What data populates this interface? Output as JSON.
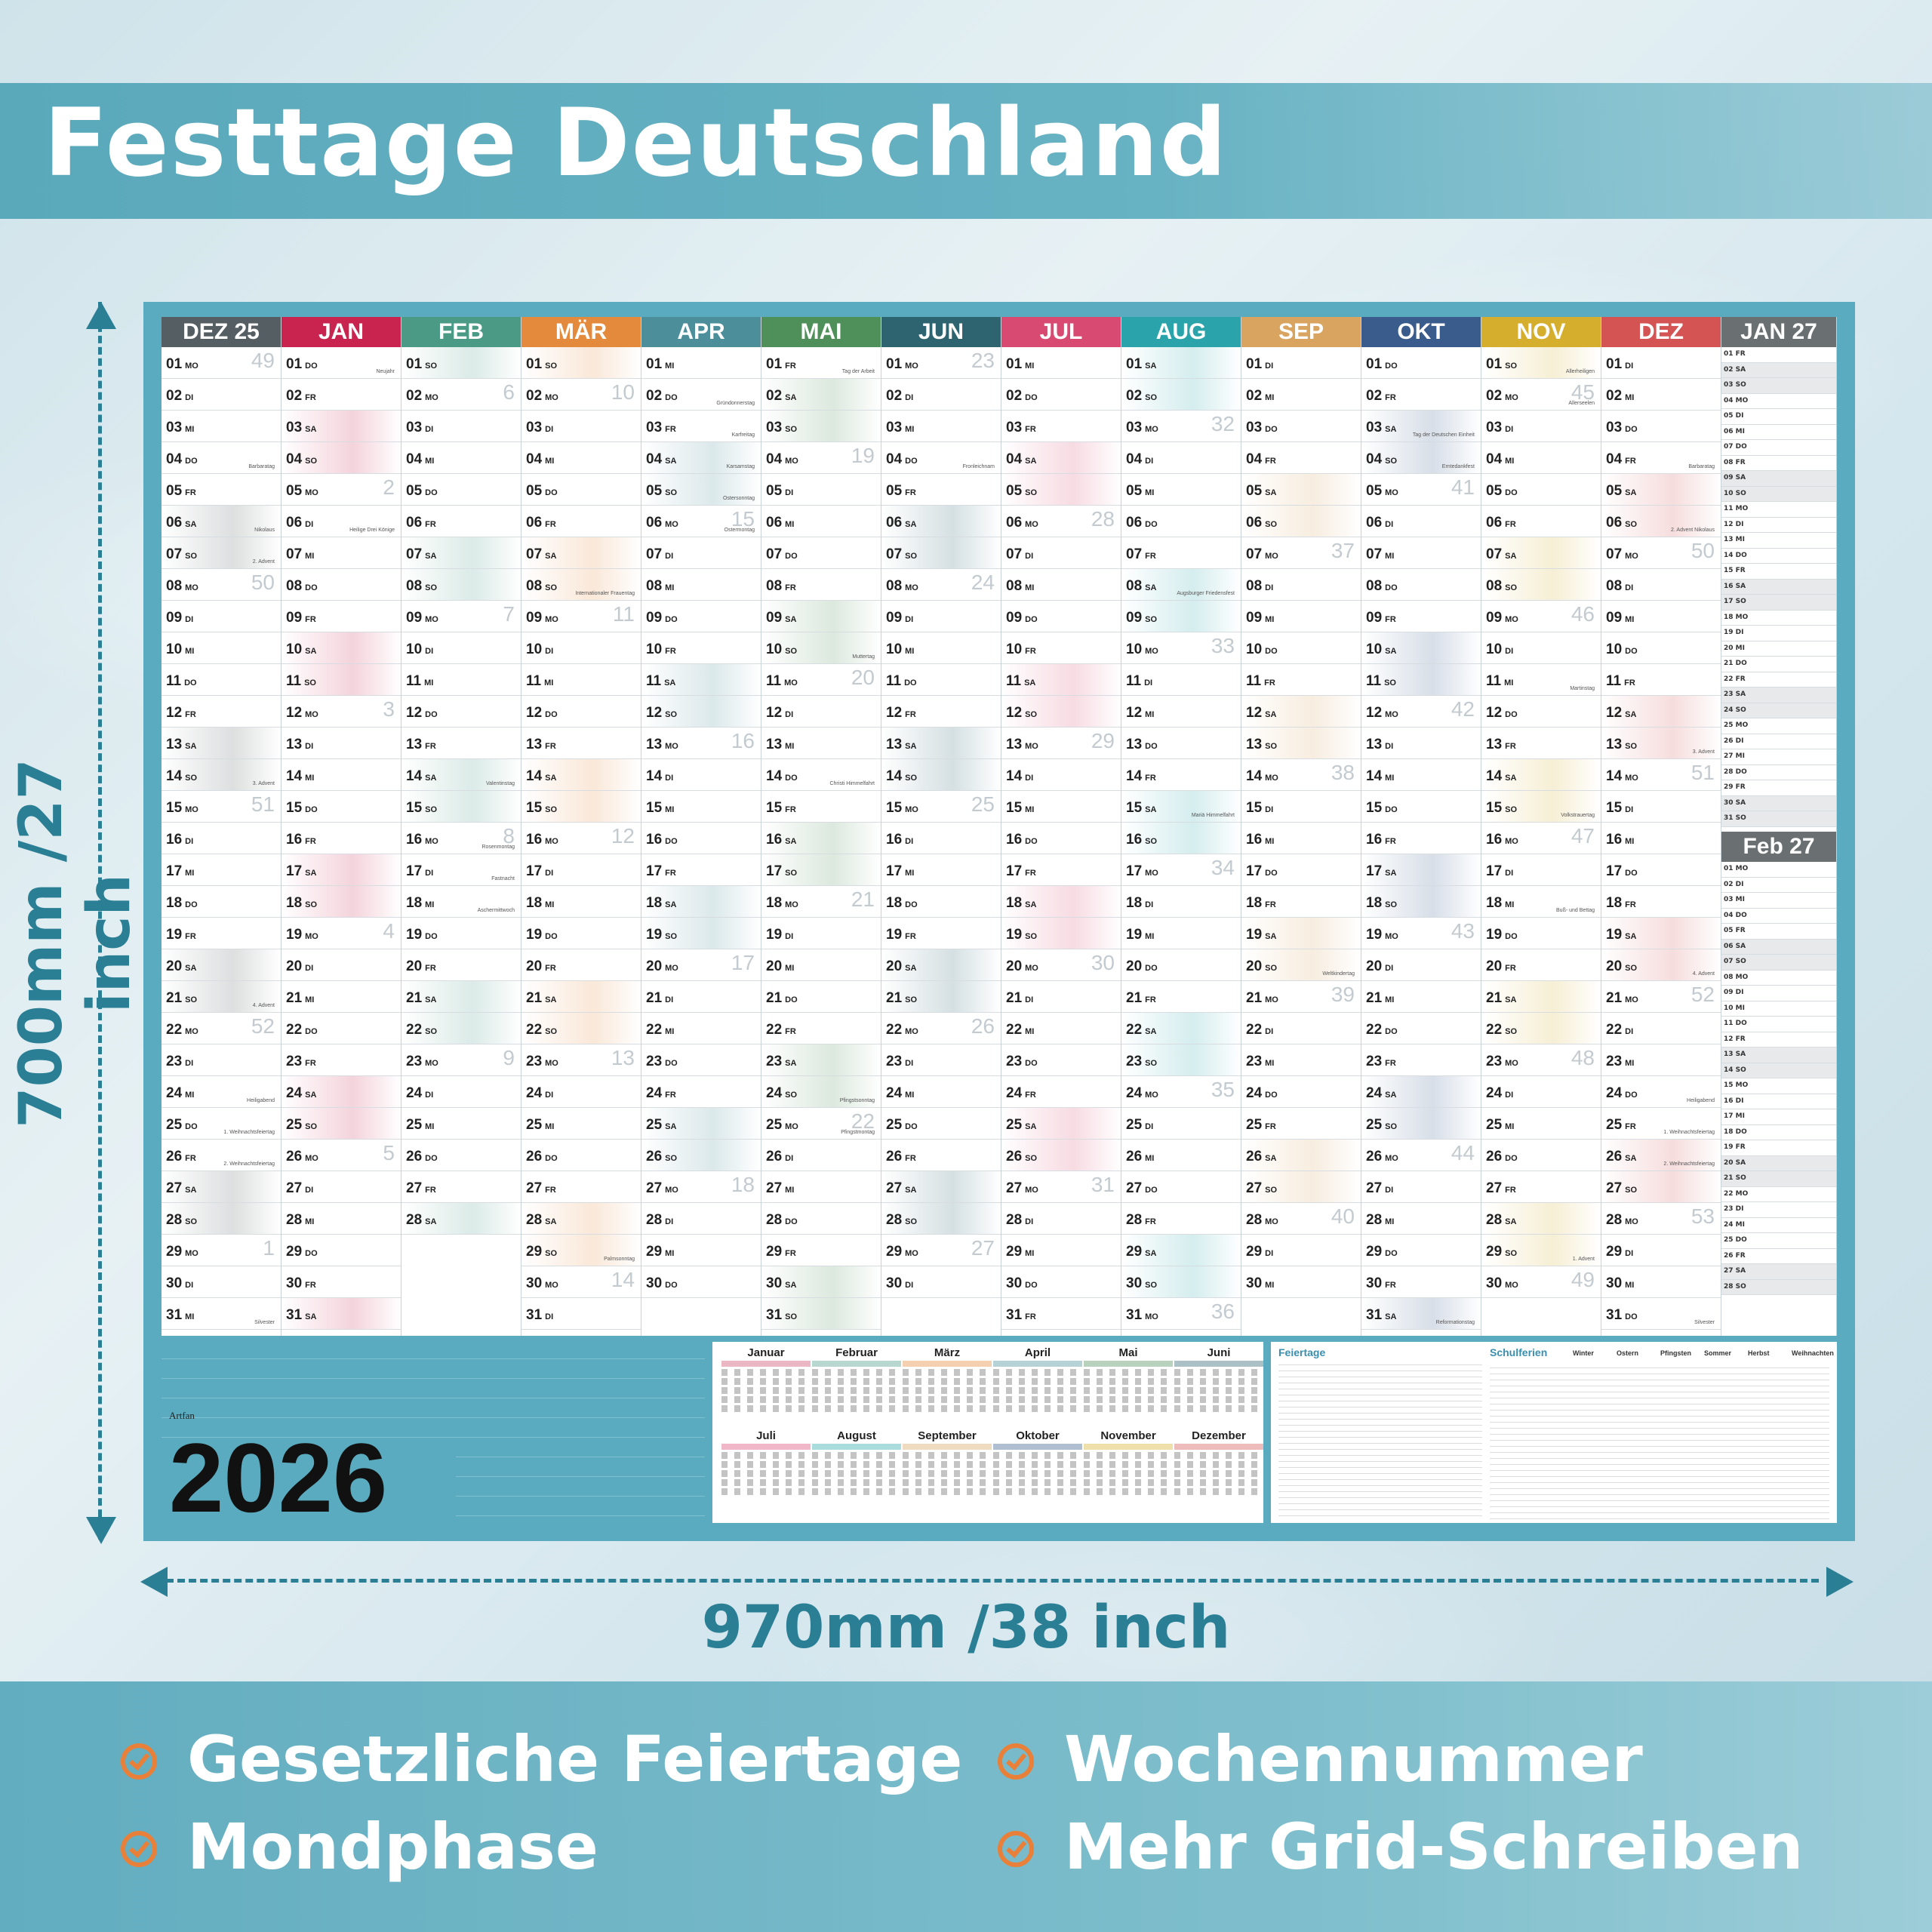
{
  "title": "Festtage Deutschland",
  "dimensions": {
    "height_label": "700mm /27 inch",
    "width_label": "970mm /38 inch"
  },
  "year": "2026",
  "brand": "Artfan",
  "months": [
    {
      "label": "DEZ 25",
      "color": "#555e62"
    },
    {
      "label": "JAN",
      "color": "#c8244f"
    },
    {
      "label": "FEB",
      "color": "#4a9a86"
    },
    {
      "label": "MÄR",
      "color": "#e48a3c"
    },
    {
      "label": "APR",
      "color": "#4c8f9a"
    },
    {
      "label": "MAI",
      "color": "#4f8f5a"
    },
    {
      "label": "JUN",
      "color": "#2d6470"
    },
    {
      "label": "JUL",
      "color": "#d84a72"
    },
    {
      "label": "AUG",
      "color": "#2aa4aa"
    },
    {
      "label": "SEP",
      "color": "#d8a460"
    },
    {
      "label": "OKT",
      "color": "#3a5c8c"
    },
    {
      "label": "NOV",
      "color": "#d4ae2c"
    },
    {
      "label": "DEZ",
      "color": "#d45454"
    }
  ],
  "side_months": [
    {
      "label": "JAN 27"
    },
    {
      "label": "Feb 27"
    }
  ],
  "mini_calendars": [
    "Januar",
    "Februar",
    "März",
    "April",
    "Mai",
    "Juni",
    "Juli",
    "August",
    "September",
    "Oktober",
    "November",
    "Dezember"
  ],
  "tables": {
    "holidays_title": "Feiertage",
    "school_title": "Schulferien",
    "school_columns": [
      "Winter",
      "Ostern",
      "Pfingsten",
      "Sommer",
      "Herbst",
      "Weihnachten"
    ]
  },
  "features": [
    {
      "label": "Gesetzliche Feiertage",
      "color": "#e8803a"
    },
    {
      "label": "Wochennummer",
      "color": "#e8803a"
    },
    {
      "label": "Mondphase",
      "color": "#e8803a"
    },
    {
      "label": "Mehr Grid-Schreiben",
      "color": "#e8803a"
    }
  ],
  "holiday_notes": {
    "JAN.1": "Neujahr",
    "JAN.6": "Heilige Drei Könige",
    "APR.2": "Gründonnerstag",
    "APR.3": "Karfreitag",
    "APR.4": "Karsamstag",
    "APR.5": "Ostersonntag",
    "APR.6": "Ostermontag",
    "MAI.1": "Tag der Arbeit",
    "MAI.10": "Muttertag",
    "MAI.14": "Christi Himmelfahrt",
    "MAI.24": "Pfingstsonntag",
    "MAI.25": "Pfingstmontag",
    "JUN.4": "Fronleichnam",
    "AUG.8": "Augsburger Friedensfest",
    "AUG.15": "Mariä Himmelfahrt",
    "SEP.20": "Weltkindertag",
    "OKT.3": "Tag der Deutschen Einheit",
    "OKT.4": "Erntedankfest",
    "OKT.31": "Reformationstag",
    "NOV.1": "Allerheiligen",
    "NOV.2": "Allerseelen",
    "NOV.11": "Martinstag",
    "NOV.15": "Volkstrauertag",
    "NOV.18": "Buß- und Bettag",
    "NOV.29": "1. Advent",
    "DEZ.4": "Barbaratag",
    "DEZ.6": "2. Advent Nikolaus",
    "DEZ.13": "3. Advent",
    "DEZ.20": "4. Advent",
    "DEZ.24": "Heiligabend",
    "DEZ.25": "1. Weihnachtsfeiertag",
    "DEZ.26": "2. Weihnachtsfeiertag",
    "DEZ.31": "Silvester",
    "DEZ 25.4": "Barbaratag",
    "DEZ 25.6": "Nikolaus",
    "DEZ 25.7": "2. Advent",
    "DEZ 25.14": "3. Advent",
    "DEZ 25.21": "4. Advent",
    "DEZ 25.24": "Heiligabend",
    "DEZ 25.25": "1. Weihnachtsfeiertag",
    "DEZ 25.26": "2. Weihnachtsfeiertag",
    "DEZ 25.31": "Silvester",
    "FEB.14": "Valentinstag",
    "FEB.16": "Rosenmontag",
    "FEB.17": "Fastnacht",
    "FEB.18": "Aschermittwoch",
    "MÄR.8": "Internationaler Frauentag",
    "MÄR.29": "Palmsonntag"
  }
}
